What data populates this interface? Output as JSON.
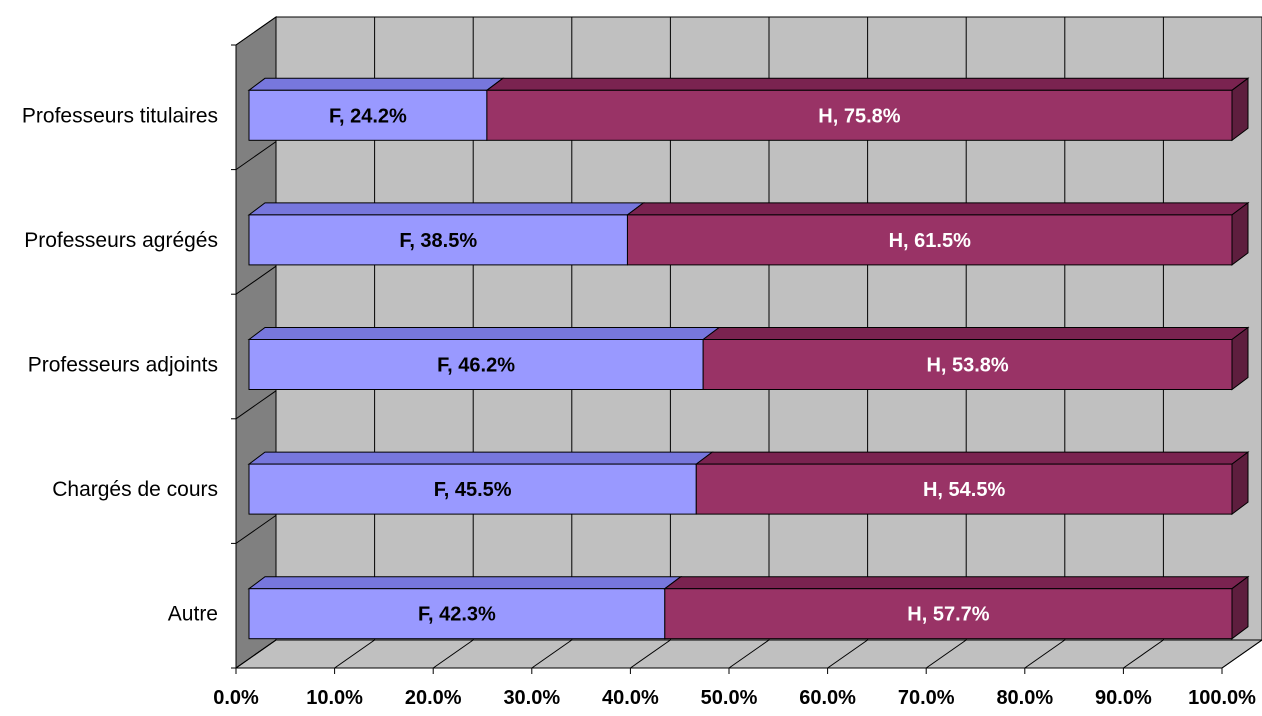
{
  "chart_data": {
    "type": "bar",
    "orientation": "horizontal",
    "stacked": true,
    "stacked_percent": true,
    "style": "3d",
    "categories": [
      "Professeurs titulaires",
      "Professeurs agrégés",
      "Professeurs adjoints",
      "Chargés de cours",
      "Autre"
    ],
    "series": [
      {
        "name": "F",
        "color": "#9999ff",
        "values": [
          24.2,
          38.5,
          46.2,
          45.5,
          42.3
        ],
        "labels": [
          "F, 24.2%",
          "F, 38.5%",
          "F, 46.2%",
          "F, 45.5%",
          "F, 42.3%"
        ]
      },
      {
        "name": "H",
        "color": "#993366",
        "values": [
          75.8,
          61.5,
          53.8,
          54.5,
          57.7
        ],
        "labels": [
          "H, 75.8%",
          "H, 61.5%",
          "H, 53.8%",
          "H, 54.5%",
          "H, 57.7%"
        ]
      }
    ],
    "x_ticks": [
      "0.0%",
      "10.0%",
      "20.0%",
      "30.0%",
      "40.0%",
      "50.0%",
      "60.0%",
      "70.0%",
      "80.0%",
      "90.0%",
      "100.0%"
    ],
    "xlim": [
      0,
      100
    ],
    "grid": true,
    "legend": "none",
    "title": "",
    "xlabel": "",
    "ylabel": ""
  }
}
